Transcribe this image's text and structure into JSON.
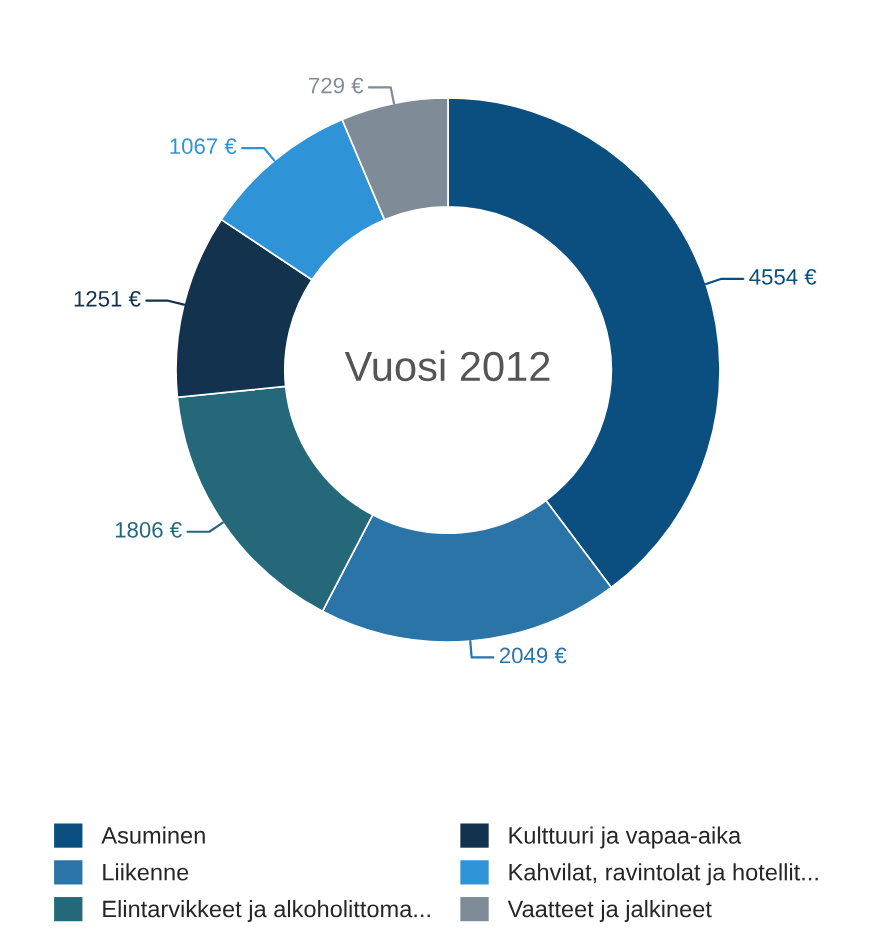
{
  "chart_data": {
    "type": "donut",
    "title": "Vuosi 2012",
    "categories": [
      "Asuminen",
      "Liikenne",
      "Elintarvikkeet ja alkoholittoma...",
      "Kulttuuri ja vapaa-aika",
      "Kahvilat, ravintolat ja hotellit...",
      "Vaatteet ja jalkineet"
    ],
    "values": [
      4554,
      2049,
      1806,
      1251,
      1067,
      729
    ],
    "value_labels": [
      "4554 €",
      "2049 €",
      "1806 €",
      "1251 €",
      "1067 €",
      "729 €"
    ],
    "colors": [
      "#0a4f80",
      "#2a74a8",
      "#24687a",
      "#12324d",
      "#2f93d8",
      "#7f8c97"
    ],
    "legend": "bottom"
  }
}
